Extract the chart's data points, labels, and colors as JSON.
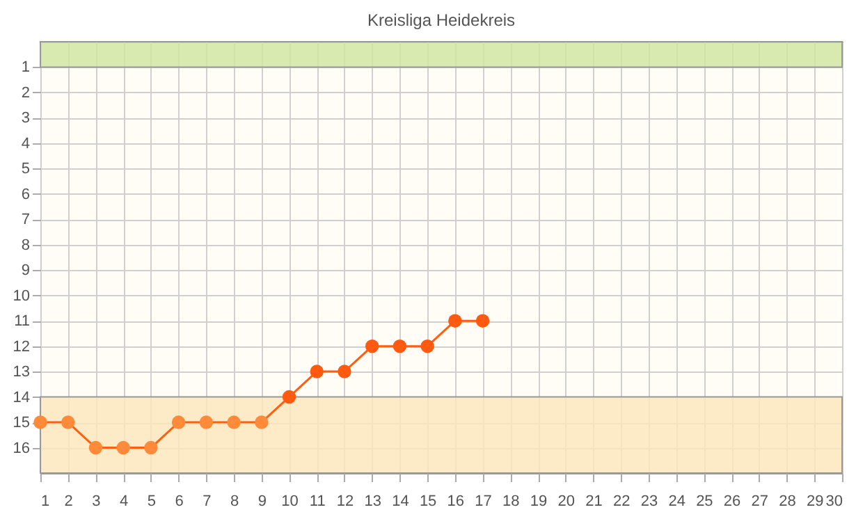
{
  "chart_data": {
    "type": "line",
    "title": "Kreisliga Heidekreis",
    "x": [
      1,
      2,
      3,
      4,
      5,
      6,
      7,
      8,
      9,
      10,
      11,
      12,
      13,
      14,
      15,
      16,
      17
    ],
    "series": [
      {
        "color": "#ff6010",
        "colors": [
          "#ff8a3a",
          "#ff8a3a",
          "#ff8a3a",
          "#ff8a3a",
          "#ff8a3a",
          "#ff8a3a",
          "#ff8a3a",
          "#ff8a3a",
          "#ff8a3a",
          "#ff5a10",
          "#ff5a10",
          "#ff5a10",
          "#ff5a10",
          "#ff5a10",
          "#ff5a10",
          "#ff5a10",
          "#ff5a10"
        ],
        "values": [
          15,
          15,
          16,
          16,
          16,
          15,
          15,
          15,
          15,
          14,
          13,
          13,
          12,
          12,
          12,
          11,
          11
        ]
      }
    ],
    "xlim": [
      1,
      30
    ],
    "xticks": [
      1,
      2,
      3,
      4,
      5,
      6,
      7,
      8,
      9,
      10,
      11,
      12,
      13,
      14,
      15,
      16,
      17,
      18,
      19,
      20,
      21,
      22,
      23,
      24,
      25,
      26,
      27,
      28,
      29,
      30
    ],
    "ylim": [
      17,
      0
    ],
    "yticks": [
      1,
      2,
      3,
      4,
      5,
      6,
      7,
      8,
      9,
      10,
      11,
      12,
      13,
      14,
      15,
      16
    ],
    "bands": [
      {
        "axis": "y",
        "from": 0,
        "to": 1,
        "color": "#cfe5a0"
      },
      {
        "axis": "y",
        "from": 14,
        "to": 17,
        "color": "#fde6bb"
      }
    ],
    "grid": true,
    "marker": "circle",
    "line_style": "solid"
  }
}
